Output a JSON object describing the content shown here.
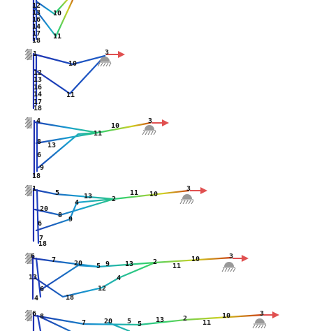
{
  "panels": [
    {
      "nodes": [
        "12",
        "13",
        "16",
        "14",
        "17",
        "18",
        "10",
        "11"
      ]
    },
    {
      "nodes": [
        "1",
        "3",
        "10",
        "12",
        "13",
        "16",
        "14",
        "17",
        "18",
        "11"
      ]
    },
    {
      "nodes": [
        "4",
        "3",
        "10",
        "11",
        "8",
        "13",
        "6",
        "9",
        "18"
      ]
    },
    {
      "nodes": [
        "1",
        "5",
        "13",
        "11",
        "10",
        "3",
        "2",
        "4",
        "20",
        "8",
        "9",
        "6",
        "7",
        "18"
      ]
    },
    {
      "nodes": [
        "6",
        "7",
        "20",
        "5",
        "9",
        "13",
        "2",
        "11",
        "10",
        "3",
        "4",
        "13",
        "6",
        "12",
        "18",
        "4"
      ]
    },
    {
      "nodes": [
        "6",
        "8",
        "7",
        "20",
        "5",
        "5",
        "13",
        "2",
        "11",
        "10",
        "3"
      ]
    }
  ]
}
